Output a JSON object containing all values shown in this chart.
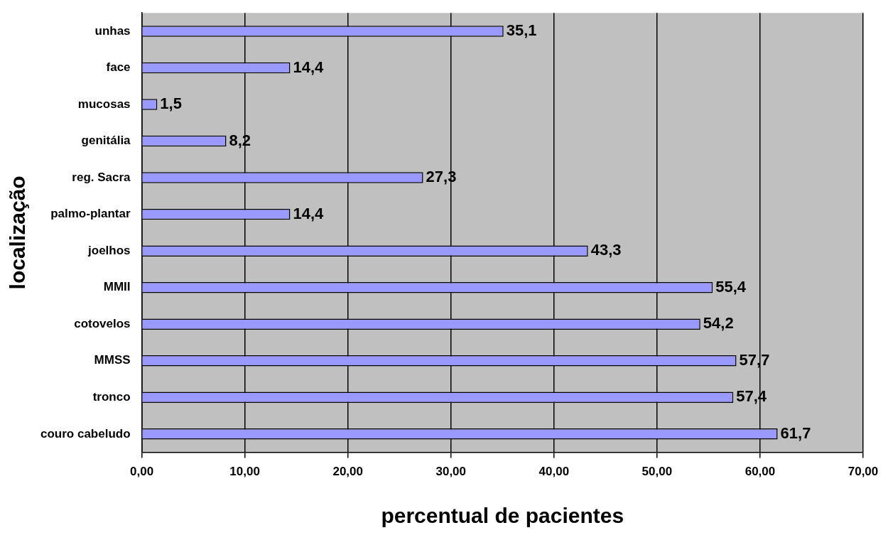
{
  "chart_data": {
    "type": "bar",
    "orientation": "horizontal",
    "xlabel": "percentual de pacientes",
    "ylabel": "localização",
    "categories": [
      "unhas",
      "face",
      "mucosas",
      "genitália",
      "reg. Sacra",
      "palmo-plantar",
      "joelhos",
      "MMII",
      "cotovelos",
      "MMSS",
      "tronco",
      "couro cabeludo"
    ],
    "values": [
      35.1,
      14.4,
      1.5,
      8.2,
      27.3,
      14.4,
      43.3,
      55.4,
      54.2,
      57.7,
      57.4,
      61.7
    ],
    "value_labels": [
      "35,1",
      "14,4",
      "1,5",
      "8,2",
      "27,3",
      "14,4",
      "43,3",
      "55,4",
      "54,2",
      "57,7",
      "57,4",
      "61,7"
    ],
    "color": "#9999ff",
    "xlim": [
      0,
      70
    ],
    "xticks": [
      {
        "value": 0,
        "label": "0,00"
      },
      {
        "value": 10,
        "label": "10,00"
      },
      {
        "value": 20,
        "label": "20,00"
      },
      {
        "value": 30,
        "label": "30,00"
      },
      {
        "value": 40,
        "label": "40,00"
      },
      {
        "value": 50,
        "label": "50,00"
      },
      {
        "value": 60,
        "label": "60,00"
      },
      {
        "value": 70,
        "label": "70,00"
      }
    ],
    "grid": "x",
    "legend": false
  }
}
